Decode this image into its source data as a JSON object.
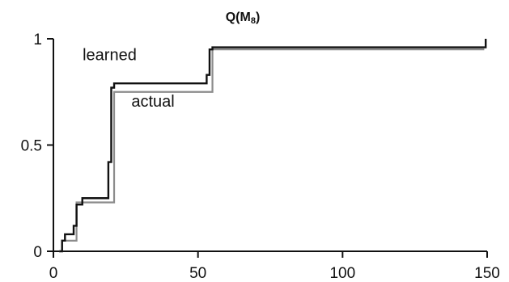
{
  "chart_data": {
    "type": "line",
    "title": {
      "main": "Q(M",
      "subscript": "8",
      "close": ")"
    },
    "xlabel": "",
    "ylabel": "",
    "xlim": [
      0,
      150
    ],
    "ylim": [
      0,
      1
    ],
    "x_ticks": [
      0,
      50,
      100,
      150
    ],
    "x_tick_labels": [
      "0",
      "50",
      "100",
      "150"
    ],
    "y_ticks": [
      0,
      0.5,
      1
    ],
    "y_tick_labels": [
      "0",
      "0.5",
      "1"
    ],
    "grid": false,
    "annotations": [
      {
        "text": "learned",
        "series": "learned",
        "x": 20,
        "y": 0.9
      },
      {
        "text": "actual",
        "series": "actual",
        "x": 35,
        "y": 0.68
      }
    ],
    "series": [
      {
        "name": "actual",
        "color": "#8c8c8c",
        "step": true,
        "x": [
          2,
          3,
          7,
          8,
          20,
          21,
          54,
          55,
          149
        ],
        "y": [
          0,
          0.05,
          0.05,
          0.23,
          0.23,
          0.75,
          0.75,
          0.95,
          0.95
        ]
      },
      {
        "name": "learned",
        "color": "#111111",
        "step": true,
        "x": [
          2,
          3,
          4,
          6,
          7,
          8,
          10,
          19,
          20,
          21,
          53,
          54,
          55,
          149,
          149.5
        ],
        "y": [
          0,
          0.05,
          0.08,
          0.08,
          0.12,
          0.22,
          0.25,
          0.42,
          0.77,
          0.79,
          0.83,
          0.95,
          0.96,
          0.96,
          1.0
        ]
      }
    ]
  }
}
